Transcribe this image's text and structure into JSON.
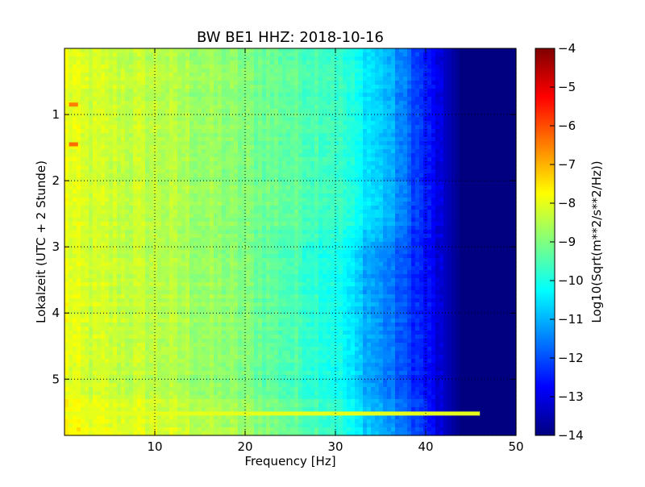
{
  "chart_data": {
    "type": "heatmap",
    "title": "BW BE1 HHZ: 2018-10-16",
    "xlabel": "Frequency [Hz]",
    "ylabel": "Lokalzeit (UTC + 2 Stunde)",
    "xlim": [
      0,
      50
    ],
    "ylim": [
      5.85,
      0
    ],
    "x_ticks": [
      10,
      20,
      30,
      40,
      50
    ],
    "y_ticks": [
      1,
      2,
      3,
      4,
      5
    ],
    "grid": true,
    "grid_style": "dotted",
    "colormap": "jet",
    "colorbar": {
      "label": "Log10(Sqrt(m**2/s**2/Hz))",
      "range": [
        -14,
        -4
      ],
      "ticks": [
        -4,
        -5,
        -6,
        -7,
        -8,
        -9,
        -10,
        -11,
        -12,
        -13,
        -14
      ]
    },
    "profile_description_levels": {
      "frequency_hz": [
        0,
        2,
        10,
        20,
        30,
        33,
        36,
        40,
        44,
        50
      ],
      "log10_psd_early_hours": [
        -7.9,
        -8.2,
        -8.4,
        -9.0,
        -9.6,
        -10.3,
        -11.0,
        -12.5,
        -14.0,
        -14.0
      ],
      "log10_psd_late_hours": [
        -7.9,
        -8.2,
        -8.4,
        -9.0,
        -10.0,
        -10.9,
        -11.6,
        -12.6,
        -14.0,
        -14.0
      ]
    },
    "notable_features": [
      {
        "x": [
          0.5,
          1.5
        ],
        "y": 0.85,
        "log10_psd": -6.5
      },
      {
        "x": [
          0.5,
          1.5
        ],
        "y": 1.45,
        "log10_psd": -6.3
      },
      {
        "x": [
          0,
          46
        ],
        "y": 5.52,
        "log10_psd": -8.0
      }
    ]
  }
}
